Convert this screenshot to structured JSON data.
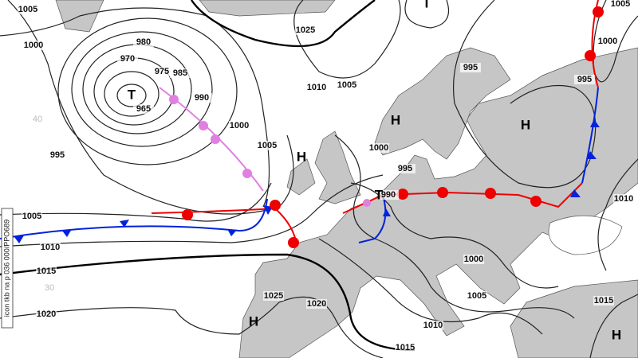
{
  "isobar_labels": [
    1005,
    1000,
    980,
    970,
    975,
    985,
    990,
    965,
    995,
    1000,
    1005,
    1025,
    1010,
    1005,
    995,
    1000,
    995,
    1005,
    1000,
    995,
    990,
    1005,
    1010,
    1015,
    1020,
    1025,
    1020,
    1000,
    1005,
    1010,
    1015,
    1015,
    1010
  ],
  "pressure_centers": [
    "T",
    "T",
    "T",
    "H",
    "H",
    "H",
    "H",
    "H"
  ],
  "latitude_labels": [
    40,
    30
  ],
  "side_label": "icon tkb na p 036 000/PPO689"
}
